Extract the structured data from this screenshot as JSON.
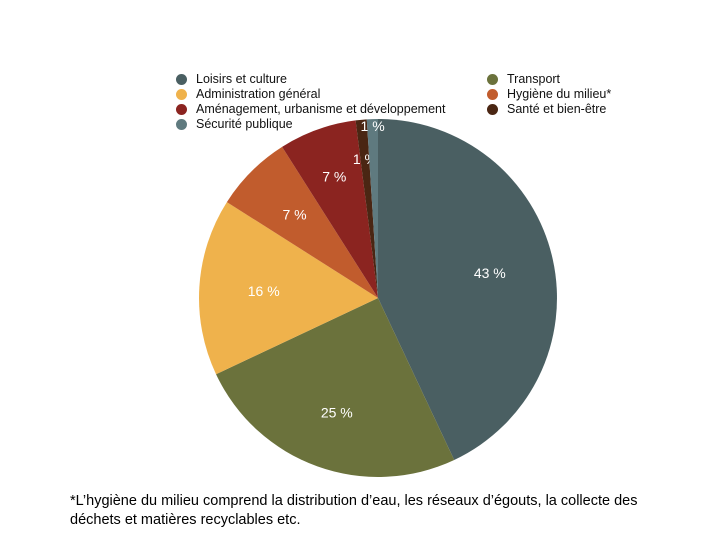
{
  "chart_data": {
    "type": "pie",
    "categories": [
      "Loisirs et culture",
      "Transport",
      "Administration général",
      "Hygiène du milieu*",
      "Aménagement, urbanisme et développement",
      "Santé et bien-être",
      "Sécurité publique"
    ],
    "values": [
      43,
      25,
      16,
      7,
      7,
      1,
      1
    ],
    "data_labels": [
      "43 %",
      "25 %",
      "16 %",
      "7 %",
      "7 %",
      "1 %",
      "1 %"
    ],
    "colors": [
      "#4a5f62",
      "#6b723c",
      "#efb24c",
      "#c15c2d",
      "#8b2420",
      "#4a2613",
      "#5f7a7f"
    ],
    "legend_position": "top",
    "footnote": "*L’hygiène du milieu comprend la distribution d’eau, les réseaux d’égouts, la collecte des déchets et matières recyclables etc."
  }
}
